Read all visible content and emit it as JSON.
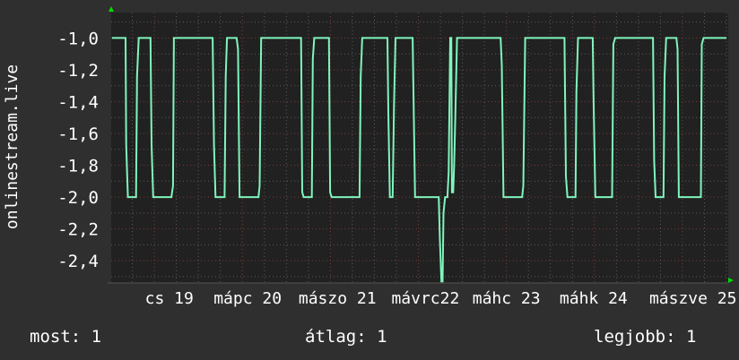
{
  "chart_data": {
    "type": "line",
    "ylabel": "onlinestream.live",
    "xlabel": "",
    "ylim": [
      -2.54,
      -0.84
    ],
    "xlim": [
      18.51,
      25.52
    ],
    "grid": true,
    "colors": {
      "background": "#2f2f2f",
      "plot_background": "#212121",
      "line": "#7ff5bc",
      "major_grid": "#7a3a3a",
      "minor_grid": "#5a5a5a",
      "arrow": "#00dd00"
    },
    "yticks": [
      {
        "value": -1.0,
        "label": "-1,0"
      },
      {
        "value": -1.2,
        "label": "-1,2"
      },
      {
        "value": -1.4,
        "label": "-1,4"
      },
      {
        "value": -1.6,
        "label": "-1,6"
      },
      {
        "value": -1.8,
        "label": "-1,8"
      },
      {
        "value": -2.0,
        "label": "-2,0"
      },
      {
        "value": -2.2,
        "label": "-2,2"
      },
      {
        "value": -2.4,
        "label": "-2,4"
      }
    ],
    "xticks": [
      {
        "value": 19.17,
        "label": "cs 19"
      },
      {
        "value": 20.06,
        "label": "mápc 20"
      },
      {
        "value": 21.08,
        "label": "mászo 21"
      },
      {
        "value": 22.08,
        "label": "mávrc22"
      },
      {
        "value": 23.0,
        "label": "máhc 23"
      },
      {
        "value": 23.99,
        "label": "máhk 24"
      },
      {
        "value": 25.12,
        "label": "mászve 25"
      }
    ],
    "series": [
      {
        "x": [
          18.519,
          18.673,
          18.68,
          18.7,
          18.792,
          18.803,
          18.823,
          18.956,
          18.969,
          18.987,
          19.194,
          19.212,
          19.222,
          19.662,
          19.678,
          19.695,
          19.798,
          19.811,
          19.825,
          19.934,
          19.951,
          19.968,
          20.183,
          20.196,
          20.214,
          20.667,
          20.68,
          20.697,
          20.789,
          20.8,
          20.817,
          20.984,
          20.997,
          21.014,
          21.331,
          21.345,
          21.362,
          21.648,
          21.658,
          21.676,
          21.707,
          21.723,
          21.74,
          21.935,
          21.945,
          21.962,
          22.231,
          22.244,
          22.262,
          22.275,
          22.285,
          22.303,
          22.33,
          22.344,
          22.361,
          22.374,
          22.381,
          22.395,
          22.405,
          22.422,
          22.439,
          22.934,
          22.947,
          22.967,
          23.179,
          23.192,
          23.213,
          23.66,
          23.676,
          23.693,
          23.785,
          23.795,
          23.813,
          23.98,
          23.99,
          24.01,
          24.201,
          24.215,
          24.235,
          24.665,
          24.678,
          24.695,
          24.784,
          24.797,
          24.815,
          24.931,
          24.944,
          24.959,
          25.209,
          25.219,
          25.24,
          25.5
        ],
        "y": [
          -1.0,
          -1.0,
          -1.67,
          -2.0,
          -2.0,
          -1.24,
          -1.0,
          -1.0,
          -1.67,
          -2.0,
          -2.0,
          -1.93,
          -1.0,
          -1.0,
          -1.67,
          -2.0,
          -2.0,
          -1.24,
          -1.0,
          -1.0,
          -1.07,
          -2.0,
          -2.0,
          -1.93,
          -1.0,
          -1.0,
          -1.97,
          -2.0,
          -2.0,
          -1.13,
          -1.0,
          -1.0,
          -1.97,
          -2.0,
          -2.0,
          -1.24,
          -1.0,
          -1.0,
          -1.47,
          -2.0,
          -2.0,
          -1.43,
          -1.0,
          -1.0,
          -1.37,
          -2.0,
          -2.0,
          -2.27,
          -2.53,
          -2.53,
          -2.1,
          -2.0,
          -2.0,
          -1.84,
          -1.0,
          -1.0,
          -1.97,
          -1.97,
          -1.81,
          -1.44,
          -1.0,
          -1.0,
          -1.17,
          -2.0,
          -2.0,
          -1.93,
          -1.0,
          -1.0,
          -1.87,
          -2.0,
          -2.0,
          -1.34,
          -1.0,
          -1.0,
          -1.37,
          -2.0,
          -2.0,
          -1.04,
          -1.0,
          -1.0,
          -1.77,
          -2.0,
          -2.0,
          -1.24,
          -1.0,
          -1.0,
          -1.07,
          -2.0,
          -2.0,
          -1.04,
          -1.0,
          -1.0
        ]
      }
    ]
  },
  "legend": {
    "current": "most: 1",
    "average": "átlag: 1",
    "best": "legjobb: 1"
  }
}
